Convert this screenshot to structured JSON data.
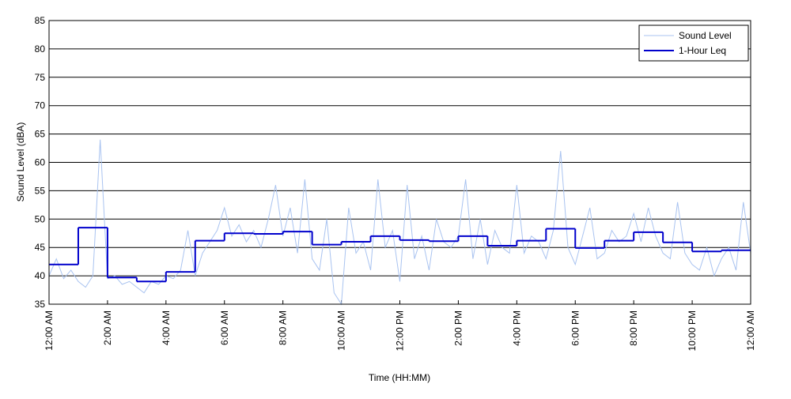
{
  "chart_data": {
    "type": "line",
    "x_label": "Time (HH:MM)",
    "y_label": "Sound Level (dBA)",
    "xlim": [
      0,
      24
    ],
    "xticks": [
      {
        "value": 0,
        "label": "12:00 AM"
      },
      {
        "value": 2,
        "label": "2:00 AM"
      },
      {
        "value": 4,
        "label": "4:00 AM"
      },
      {
        "value": 6,
        "label": "6:00 AM"
      },
      {
        "value": 8,
        "label": "8:00 AM"
      },
      {
        "value": 10,
        "label": "10:00 AM"
      },
      {
        "value": 12,
        "label": "12:00 PM"
      },
      {
        "value": 14,
        "label": "2:00 PM"
      },
      {
        "value": 16,
        "label": "4:00 PM"
      },
      {
        "value": 18,
        "label": "6:00 PM"
      },
      {
        "value": 20,
        "label": "8:00 PM"
      },
      {
        "value": 22,
        "label": "10:00 PM"
      },
      {
        "value": 24,
        "label": "12:00 AM"
      }
    ],
    "ylim": [
      35,
      85
    ],
    "yticks": [
      35,
      40,
      45,
      50,
      55,
      60,
      65,
      70,
      75,
      80,
      85
    ],
    "grid": true,
    "legend": "upper right",
    "series": [
      {
        "name": "Sound Level",
        "color": "#a9c3f0",
        "style": "line",
        "x": [
          0,
          0.25,
          0.5,
          0.75,
          1,
          1.25,
          1.5,
          1.75,
          2,
          2.25,
          2.5,
          2.75,
          3,
          3.25,
          3.5,
          3.75,
          4,
          4.25,
          4.5,
          4.75,
          5,
          5.25,
          5.5,
          5.75,
          6,
          6.25,
          6.5,
          6.75,
          7,
          7.25,
          7.5,
          7.75,
          8,
          8.25,
          8.5,
          8.75,
          9,
          9.25,
          9.5,
          9.75,
          10,
          10.25,
          10.5,
          10.75,
          11,
          11.25,
          11.5,
          11.75,
          12,
          12.25,
          12.5,
          12.75,
          13,
          13.25,
          13.5,
          13.75,
          14,
          14.25,
          14.5,
          14.75,
          15,
          15.25,
          15.5,
          15.75,
          16,
          16.25,
          16.5,
          16.75,
          17,
          17.25,
          17.5,
          17.75,
          18,
          18.25,
          18.5,
          18.75,
          19,
          19.25,
          19.5,
          19.75,
          20,
          20.25,
          20.5,
          20.75,
          21,
          21.25,
          21.5,
          21.75,
          22,
          22.25,
          22.5,
          22.75,
          23,
          23.25,
          23.5,
          23.75,
          24
        ],
        "values": [
          40,
          43,
          39.5,
          41,
          39,
          38,
          40,
          64,
          39.5,
          40,
          38.5,
          39,
          38,
          37,
          39,
          38.5,
          40,
          39.5,
          41,
          48,
          40,
          44,
          46,
          48,
          52,
          47,
          49,
          46,
          48,
          45,
          50,
          56,
          47,
          52,
          44,
          57,
          43,
          41,
          50,
          37,
          35,
          52,
          44,
          46,
          41,
          57,
          45,
          48,
          39,
          56,
          43,
          47,
          41,
          50,
          46,
          45,
          47,
          57,
          43,
          50,
          42,
          48,
          45,
          44,
          56,
          44,
          47,
          46,
          43,
          48,
          62,
          45,
          42,
          47,
          52,
          43,
          44,
          48,
          46,
          47,
          51,
          46,
          52,
          47,
          44,
          43,
          53,
          44,
          42,
          41,
          45,
          40,
          43,
          45,
          41,
          53,
          44
        ]
      },
      {
        "name": "1-Hour Leq",
        "color": "#0000cc",
        "style": "step",
        "x": [
          0,
          1,
          2,
          3,
          4,
          5,
          6,
          7,
          8,
          9,
          10,
          11,
          12,
          13,
          14,
          15,
          16,
          17,
          18,
          19,
          20,
          21,
          22,
          23
        ],
        "values": [
          42,
          48.5,
          39.7,
          39,
          40.7,
          46.2,
          47.5,
          47.4,
          47.8,
          45.5,
          46,
          47,
          46.3,
          46.1,
          47,
          45.3,
          46.2,
          48.3,
          44.9,
          46.2,
          47.7,
          45.9,
          44.3,
          44.5
        ]
      }
    ]
  }
}
